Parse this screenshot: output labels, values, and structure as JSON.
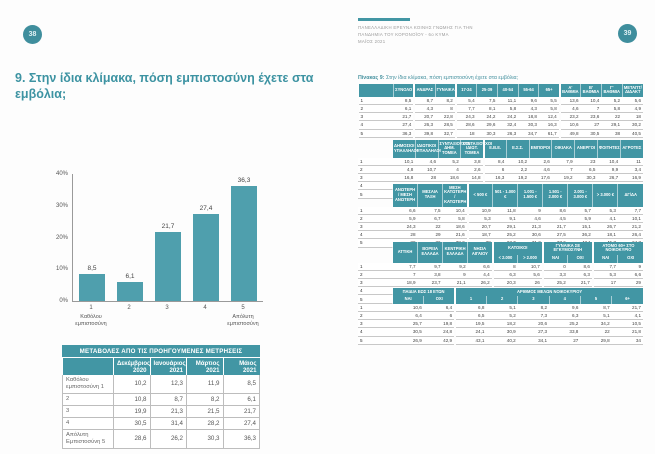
{
  "colors": {
    "accent": "#4296a4",
    "bar": "#4f9fad",
    "circle": "#3f8e9d"
  },
  "page_left": {
    "page_number": "38",
    "title": "9. Στην ίδια κλίμακα, πόση εμπιστοσύνη έχετε στα εμβόλια;",
    "changes_table": {
      "title": "ΜΕΤΑΒΟΛΕΣ ΑΠΟ ΤΙΣ ΠΡΟΗΓΟΥΜΕΝΕΣ ΜΕΤΡΗΣΕΙΣ",
      "teal_label": true,
      "header": [
        [
          {
            "t": "Δεκέμβριος 2020"
          },
          {
            "t": "Ιανουάριος 2021"
          },
          {
            "t": "Μάρτιος 2021"
          },
          {
            "t": "Μάιος 2021"
          }
        ]
      ],
      "rows": [
        {
          "label": "Καθόλου εμπιστοσύνη 1",
          "values": [
            "10,2",
            "12,3",
            "11,9",
            "8,5"
          ]
        },
        {
          "label": "2",
          "values": [
            "10,8",
            "8,7",
            "8,2",
            "6,1"
          ]
        },
        {
          "label": "3",
          "values": [
            "19,9",
            "21,3",
            "21,5",
            "21,7"
          ]
        },
        {
          "label": "4",
          "values": [
            "30,5",
            "31,4",
            "28,2",
            "27,4"
          ]
        },
        {
          "label": "Απόλυτη Εμπιστοσύνη 5",
          "values": [
            "28,6",
            "26,2",
            "30,3",
            "36,3"
          ]
        }
      ]
    }
  },
  "chart_data": {
    "type": "bar",
    "title": "",
    "xlabel": "",
    "ylabel": "",
    "categories": [
      "1",
      "2",
      "3",
      "4",
      "5"
    ],
    "category_sublabels": [
      "Καθόλου εμπιστοσύνη",
      "",
      "",
      "",
      "Απόλυτη εμπιστοσύνη"
    ],
    "values": [
      8.5,
      6.1,
      21.7,
      27.4,
      36.3
    ],
    "labels": [
      "8,5",
      "6,1",
      "21,7",
      "27,4",
      "36,3"
    ],
    "ylim": [
      0,
      40
    ],
    "yticks": [
      0,
      10,
      20,
      30,
      40
    ],
    "grid": false,
    "legend": "none",
    "bar_color": "#4f9fad"
  },
  "page_right": {
    "page_number": "39",
    "report_header": {
      "line1": "ΠΑΝΕΛΛΑΔΙΚΗ ΕΡΕΥΝΑ ΚΟΙΝΗΣ ΓΝΩΜΗΣ ΓΙΑ ΤΗΝ",
      "line2": "ΠΑΝΔΗΜΙΑ ΤΟΥ ΚΟΡΟΝΟΪΟΥ - 6ο ΚΥΜΑ",
      "line3": "ΜΑΪΟΣ 2021"
    },
    "caption_prefix": "Πίνακας 9:",
    "caption_text": "Στην ίδια κλίμακα, πόση εμπιστοσύνη έχετε στα εμβόλια;",
    "tables": [
      {
        "teal_label": true,
        "gaps": [
          1,
          3,
          8
        ],
        "header": [
          [
            {
              "t": "ΣΥΝΟΛΟ"
            },
            {
              "t": "ΑΝΔΡΑΣ",
              "gap": true
            },
            {
              "t": "ΓΥΝΑΙΚΑ"
            },
            {
              "t": "17-24",
              "gap": true
            },
            {
              "t": "25-39"
            },
            {
              "t": "40-54"
            },
            {
              "t": "55-64"
            },
            {
              "t": "65+"
            },
            {
              "t": "Α' ΒΑΘΜΙΑ",
              "gap": true
            },
            {
              "t": "Β' ΒΑΘΜΙΑ"
            },
            {
              "t": "Γ' ΒΑΘΜΙΑ"
            },
            {
              "t": "ΜΕΤΑΠΤ/ ΔΙΔΑΚΤ"
            }
          ]
        ],
        "rows": [
          {
            "label": "1",
            "values": [
              "8,5",
              "8,7",
              "8,2",
              "5,4",
              "7,5",
              "11,1",
              "9,6",
              "5,5",
              "13,6",
              "10,4",
              "5,2",
              "5,6"
            ]
          },
          {
            "label": "2",
            "values": [
              "6,1",
              "4,3",
              "8",
              "7,7",
              "8,1",
              "5,8",
              "4,3",
              "5,8",
              "4,6",
              "7",
              "5,8",
              "4,9"
            ]
          },
          {
            "label": "3",
            "values": [
              "21,7",
              "20,7",
              "22,8",
              "24,3",
              "24,2",
              "24,2",
              "18,8",
              "12,4",
              "23,2",
              "23,6",
              "22",
              "18"
            ]
          },
          {
            "label": "4",
            "values": [
              "27,4",
              "26,3",
              "28,5",
              "28,6",
              "29,6",
              "32,4",
              "30,3",
              "16,3",
              "10,6",
              "27",
              "29,1",
              "30,2"
            ]
          },
          {
            "label": "5",
            "values": [
              "36,3",
              "39,8",
              "32,7",
              "18",
              "30,3",
              "26,3",
              "34,7",
              "61,7",
              "49,8",
              "30,5",
              "38",
              "40,5"
            ]
          }
        ]
      },
      {
        "teal_label": false,
        "gaps": [
          4
        ],
        "header": [
          [
            {
              "t": "ΔΗΜΟΣΙΟΙ ΥΠΑΛΛΗΛΟΙ"
            },
            {
              "t": "ΙΔΙΩΤΙΚΟΙ ΥΠΑΛΛΗΛΟΙ"
            },
            {
              "t": "ΣΥΝΤΑΞΙΟΥΧΟΙ ΔΗΜ. ΤΟΜΕΑ"
            },
            {
              "t": "ΣΥΝΤΑΞΙΟΥΧΟΙ ΙΔΙΩΤ. ΤΟΜΕΑ"
            },
            {
              "t": "Ε.Β.Ε.",
              "gap": true
            },
            {
              "t": "Ε.Σ.Σ."
            },
            {
              "t": "ΕΜΠΟΡΟΙ"
            },
            {
              "t": "ΟΙΚΙΑΚΑ"
            },
            {
              "t": "ΑΝΕΡΓΟΙ"
            },
            {
              "t": "ΦΟΙΤΗΤΕΣ"
            },
            {
              "t": "ΑΓΡΟΤΕΣ"
            }
          ]
        ],
        "rows": [
          {
            "label": "1",
            "values": [
              "10,1",
              "4,6",
              "5,2",
              "3,8",
              "8,4",
              "10,2",
              "2,6",
              "7,9",
              "23",
              "10,4",
              "11"
            ]
          },
          {
            "label": "2",
            "values": [
              "4,8",
              "10,7",
              "4",
              "2,6",
              "6",
              "2,2",
              "4,6",
              "7",
              "6,5",
              "9,9",
              "3,4"
            ]
          },
          {
            "label": "3",
            "values": [
              "16,8",
              "28",
              "18,6",
              "14,8",
              "16,3",
              "19,2",
              "17,6",
              "19,2",
              "30,3",
              "26,7",
              "16,9"
            ]
          },
          {
            "label": "4",
            "values": [
              "33,7",
              "28,9",
              "31,2",
              "29,7",
              "27,1",
              "43,1",
              "35,6",
              "16,3",
              "24,5",
              "38",
              "23,2"
            ]
          },
          {
            "label": "5",
            "values": [
              "34,6",
              "28,4",
              "41,1",
              "50,6",
              "44,6",
              "32,6",
              "33,4",
              "37,7",
              "24,5",
              "18,2",
              "45,5"
            ]
          }
        ]
      },
      {
        "teal_label": false,
        "gaps": [
          3
        ],
        "header": [
          [
            {
              "t": "ΑΝΩΤΕΡΗ / ΜΕΣΗ ΑΝΩΤΕΡΗ"
            },
            {
              "t": "ΜΕΣΑΙΑ ΤΑΞΗ"
            },
            {
              "t": "ΜΕΣΗ ΚΑΤΩΤΕΡΗ / ΚΑΤΩΤΕΡΗ"
            },
            {
              "t": "< 500 €",
              "gap": true
            },
            {
              "t": "501 - 1.000 €"
            },
            {
              "t": "1.001 - 1.500 €"
            },
            {
              "t": "1.501 - 2.000 €"
            },
            {
              "t": "2.001 - 3.000 €"
            },
            {
              "t": "> 3.000 €"
            },
            {
              "t": "ΔΓ/ΔΑ"
            }
          ]
        ],
        "rows": [
          {
            "label": "1",
            "values": [
              "6,6",
              "7,5",
              "10,4",
              "10,9",
              "11,8",
              "9",
              "8,6",
              "5,7",
              "5,3",
              "7,7"
            ]
          },
          {
            "label": "2",
            "values": [
              "5,9",
              "6,7",
              "5,8",
              "5,3",
              "9,1",
              "4,6",
              "4,5",
              "5,9",
              "4,1",
              "10,1"
            ]
          },
          {
            "label": "3",
            "values": [
              "24,3",
              "22",
              "18,6",
              "20,7",
              "29,1",
              "21,3",
              "21,7",
              "15,1",
              "26,7",
              "21,2"
            ]
          },
          {
            "label": "4",
            "values": [
              "28",
              "29",
              "21,6",
              "18,7",
              "25,2",
              "30,6",
              "27,5",
              "36,2",
              "18,1",
              "26,4"
            ]
          },
          {
            "label": "5",
            "values": [
              "39",
              "36",
              "38,2",
              "38",
              "23,7",
              "31,2",
              "37,6",
              "43,1",
              "45,7",
              "24,7"
            ]
          }
        ]
      },
      {
        "teal_label": false,
        "gaps": [
          4,
          6,
          8
        ],
        "header": [
          [
            {
              "t": "ΑΤΤΙΚΗ",
              "rs": 2
            },
            {
              "t": "ΒΟΡΕΙΑ ΕΛΛΑΔΑ",
              "rs": 2
            },
            {
              "t": "ΚΕΝΤΡΙΚΗ ΕΛΛΑΔΑ",
              "rs": 2
            },
            {
              "t": "ΝΗΣΙΑ ΑΙΓΑΙΟΥ",
              "rs": 2
            },
            {
              "t": "ΚΑΤΟΙΚΟΙ",
              "cs": 2,
              "gap": true
            },
            {
              "t": "ΓΥΝΑΙΚΑ ΣΕ ΕΓΚΥΜΟΣΥΝΗ",
              "cs": 2,
              "gap": true
            },
            {
              "t": "ΑΤΟΜΟ 60+ ΣΤΟ ΝΟΙΚΟΚΥΡΙΟ",
              "cs": 2,
              "gap": true
            }
          ],
          [
            {
              "t": "< 2.000",
              "gap": true
            },
            {
              "t": "> 2.000"
            },
            {
              "t": "ΝΑΙ",
              "gap": true
            },
            {
              "t": "ΟΧΙ"
            },
            {
              "t": "ΝΑΙ",
              "gap": true
            },
            {
              "t": "ΟΧΙ"
            }
          ]
        ],
        "rows": [
          {
            "label": "1",
            "values": [
              "7,7",
              "9,7",
              "9,2",
              "6,6",
              "8",
              "10,7",
              "0",
              "8,6",
              "7,7",
              "9"
            ]
          },
          {
            "label": "2",
            "values": [
              "7",
              "3,8",
              "9",
              "4,4",
              "6,3",
              "5,6",
              "3,3",
              "6,3",
              "5,3",
              "6,6"
            ]
          },
          {
            "label": "3",
            "values": [
              "18,9",
              "23,7",
              "21,1",
              "26,2",
              "20,3",
              "26",
              "25,2",
              "21,7",
              "17",
              "29"
            ]
          },
          {
            "label": "4",
            "values": [
              "19,7",
              "27,2",
              "25,7",
              "27,9",
              "29",
              "16,9",
              "58,7",
              "26,7",
              "24,7",
              "29,2"
            ]
          },
          {
            "label": "5",
            "values": [
              "39,2",
              "33,6",
              "35,1",
              "33,3",
              "36,1",
              "37,7",
              "14,6",
              "36,7",
              "45,1",
              "30,5"
            ]
          }
        ]
      },
      {
        "teal_label": false,
        "gaps": [
          2
        ],
        "header": [
          [
            {
              "t": "ΠΑΙΔΙΑ ΕΩΣ 18 ΕΤΩΝ",
              "cs": 2
            },
            {
              "t": "ΑΡΙΘΜΟΣ ΜΕΛΩΝ ΝΟΙΚΟΚΥΡΙΟΥ",
              "cs": 6,
              "gap": true
            }
          ],
          [
            {
              "t": "ΝΑΙ"
            },
            {
              "t": "ΟΧΙ"
            },
            {
              "t": "1",
              "gap": true
            },
            {
              "t": "2"
            },
            {
              "t": "3"
            },
            {
              "t": "4"
            },
            {
              "t": "5"
            },
            {
              "t": "6+"
            }
          ]
        ],
        "rows": [
          {
            "label": "1",
            "values": [
              "10,6",
              "6,4",
              "6,8",
              "5,1",
              "8,2",
              "9,6",
              "8,7",
              "21,7"
            ]
          },
          {
            "label": "2",
            "values": [
              "6,4",
              "6",
              "6,5",
              "5,2",
              "7,3",
              "6,3",
              "5,1",
              "4,1"
            ]
          },
          {
            "label": "3",
            "values": [
              "25,7",
              "19,8",
              "19,5",
              "18,2",
              "20,6",
              "25,2",
              "34,2",
              "10,5"
            ]
          },
          {
            "label": "4",
            "values": [
              "30,5",
              "24,8",
              "24,1",
              "30,9",
              "27,3",
              "33,8",
              "22",
              "21,8"
            ]
          },
          {
            "label": "5",
            "values": [
              "26,9",
              "42,9",
              "43,1",
              "40,2",
              "34,1",
              "27",
              "29,8",
              "34"
            ]
          }
        ]
      }
    ]
  }
}
